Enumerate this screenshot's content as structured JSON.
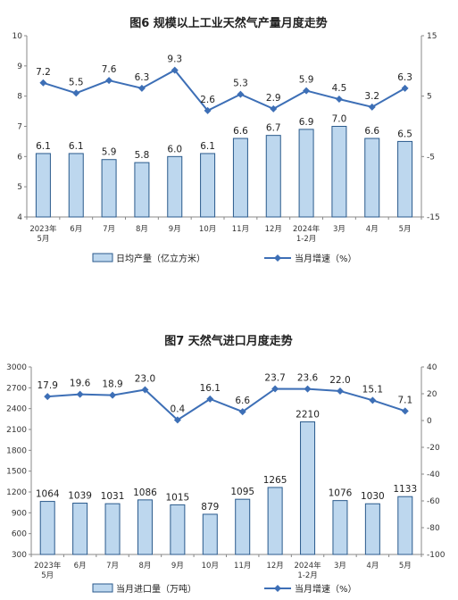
{
  "chart_data": [
    {
      "type": "bar",
      "title": "图6  规模以上工业天然气产量月度走势",
      "categories": [
        "2023年\n5月",
        "6月",
        "7月",
        "8月",
        "9月",
        "10月",
        "11月",
        "12月",
        "2024年\n1-2月",
        "3月",
        "4月",
        "5月"
      ],
      "series": [
        {
          "name": "日均产量（亿立方米）",
          "type": "bar",
          "axis": "left",
          "values": [
            6.1,
            6.1,
            5.9,
            5.8,
            6.0,
            6.1,
            6.6,
            6.7,
            6.9,
            7.0,
            6.6,
            6.5
          ]
        },
        {
          "name": "当月增速（%）",
          "type": "line",
          "axis": "right",
          "values": [
            7.2,
            5.5,
            7.6,
            6.3,
            9.3,
            2.6,
            5.3,
            2.9,
            5.9,
            4.5,
            3.2,
            6.3
          ]
        }
      ],
      "y_left": {
        "min": 4,
        "max": 10,
        "ticks": [
          4,
          5,
          6,
          7,
          8,
          9,
          10
        ]
      },
      "y_right": {
        "min": -15,
        "max": 15,
        "ticks": [
          -15,
          -5,
          5,
          15
        ]
      },
      "legend_position": "bottom",
      "colors": {
        "bar_fill": "#bdd7ee",
        "bar_stroke": "#2a5a8c",
        "line": "#3d6fb6"
      }
    },
    {
      "type": "bar",
      "title": "图7  天然气进口月度走势",
      "categories": [
        "2023年\n5月",
        "6月",
        "7月",
        "8月",
        "9月",
        "10月",
        "11月",
        "12月",
        "2024年\n1-2月",
        "3月",
        "4月",
        "5月"
      ],
      "series": [
        {
          "name": "当月进口量（万吨）",
          "type": "bar",
          "axis": "left",
          "values": [
            1064,
            1039,
            1031,
            1086,
            1015,
            879,
            1095,
            1265,
            2210,
            1076,
            1030,
            1133
          ]
        },
        {
          "name": "当月增速（%）",
          "type": "line",
          "axis": "right",
          "values": [
            17.9,
            19.6,
            18.9,
            23.0,
            0.4,
            16.1,
            6.6,
            23.7,
            23.6,
            22.0,
            15.1,
            7.1
          ]
        }
      ],
      "y_left": {
        "min": 300,
        "max": 3000,
        "ticks": [
          300,
          600,
          900,
          1200,
          1500,
          1800,
          2100,
          2400,
          2700,
          3000
        ]
      },
      "y_right": {
        "min": -100,
        "max": 40,
        "ticks": [
          -100,
          -80,
          -60,
          -40,
          -20,
          0,
          20,
          40
        ]
      },
      "legend_position": "bottom",
      "colors": {
        "bar_fill": "#bdd7ee",
        "bar_stroke": "#2a5a8c",
        "line": "#3d6fb6"
      }
    }
  ]
}
